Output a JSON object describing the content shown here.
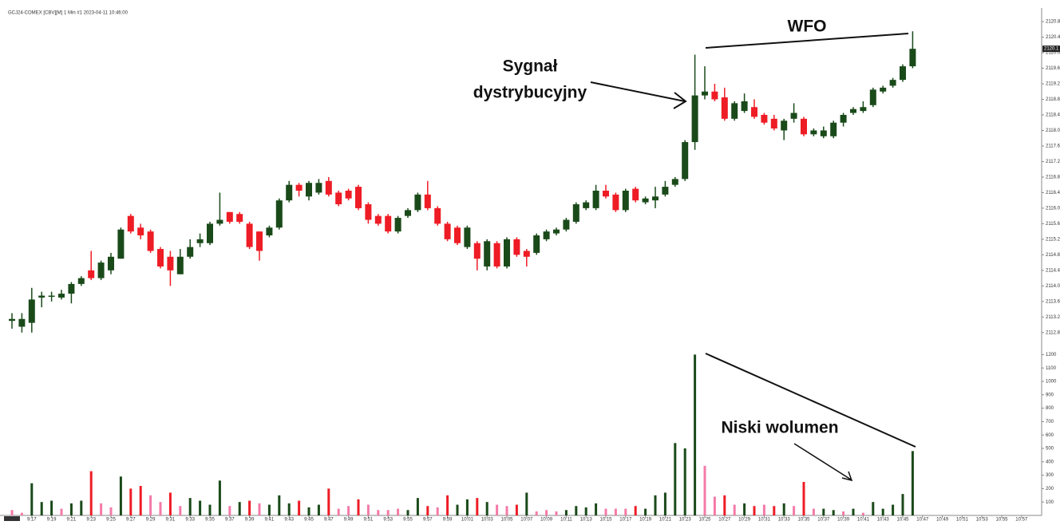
{
  "chart_data": {
    "type": "candlestick",
    "title": "GCJ24-COMEX [CBV][M]  1 Min  #1 2023-04-11 10:46:00",
    "annotations": [
      "WFO",
      "Sygnał",
      "dystrybucyjny",
      "Niski wolumen"
    ],
    "categories": [
      null,
      null,
      "9:17",
      null,
      "9:19",
      null,
      "9:21",
      null,
      "9:23",
      null,
      "9:25",
      null,
      "9:27",
      null,
      "9:29",
      null,
      "9:31",
      null,
      "9:33",
      null,
      "9:35",
      null,
      "9:37",
      null,
      "9:39",
      null,
      "9:41",
      null,
      "9:43",
      null,
      "9:45",
      null,
      "9:47",
      null,
      "9:49",
      null,
      "9:51",
      null,
      "9:53",
      null,
      "9:55",
      null,
      "9:57",
      null,
      "9:59",
      null,
      "10:01",
      null,
      "10:03",
      null,
      "10:05",
      null,
      "10:07",
      null,
      "10:09",
      null,
      "10:11",
      null,
      "10:13",
      null,
      "10:15",
      null,
      "10:17",
      null,
      "10:19",
      null,
      "10:21",
      null,
      "10:23",
      null,
      "10:25",
      null,
      "10:27",
      null,
      "10:29",
      null,
      "10:31",
      null,
      "10:33",
      null,
      "10:35",
      null,
      "10:37",
      null,
      "10:39",
      null,
      "10:41",
      null,
      "10:43",
      null,
      "10:45",
      null,
      "10:47",
      null,
      "10:49",
      null,
      "10:51",
      null,
      "10:53",
      null,
      "10:55",
      null,
      "10:57"
    ],
    "open": [
      2113.1,
      2112.95,
      2113.05,
      2113.7,
      2113.75,
      2113.7,
      2113.8,
      2114.05,
      2114.4,
      2114.2,
      2114.4,
      2114.7,
      2115.8,
      2115.5,
      2115.4,
      2114.95,
      2114.75,
      2114.3,
      2114.75,
      2115.1,
      2115.1,
      2115.6,
      2115.9,
      2115.85,
      2115.6,
      2115.4,
      2115.3,
      2115.5,
      2116.2,
      2116.6,
      2116.3,
      2116.4,
      2116.7,
      2116.4,
      2116.45,
      2116.55,
      2116.1,
      2115.8,
      2115.8,
      2115.4,
      2115.8,
      2115.95,
      2116.35,
      2116.0,
      2115.6,
      2115.5,
      2115.0,
      2115.1,
      2114.5,
      2115.1,
      2114.5,
      2115.2,
      2114.9,
      2114.85,
      2115.2,
      2115.35,
      2115.45,
      2115.65,
      2116.0,
      2116.0,
      2116.45,
      2116.35,
      2115.95,
      2116.5,
      2116.15,
      2116.2,
      2116.35,
      2116.6,
      2116.75,
      2117.7,
      2118.9,
      2119.0,
      2118.85,
      2118.3,
      2118.5,
      2118.6,
      2118.4,
      2118.3,
      2118.0,
      2118.3,
      2118.3,
      2117.9,
      2117.85,
      2117.85,
      2118.2,
      2118.45,
      2118.5,
      2118.65,
      2119.0,
      2119.15,
      2119.3,
      2119.65,
      null,
      null,
      null,
      null,
      null,
      null,
      null,
      null,
      null,
      null,
      null
    ],
    "high": [
      2113.3,
      2113.3,
      2113.95,
      2113.85,
      2113.85,
      2113.9,
      2114.1,
      2114.25,
      2114.9,
      2114.65,
      2114.85,
      2115.5,
      2115.85,
      2115.6,
      2115.45,
      2115.0,
      2114.9,
      2114.95,
      2115.2,
      2115.35,
      2115.65,
      2116.4,
      2115.9,
      2115.9,
      2115.65,
      2115.4,
      2115.55,
      2116.25,
      2116.7,
      2116.65,
      2116.7,
      2116.75,
      2116.8,
      2116.45,
      2116.5,
      2116.6,
      2116.15,
      2115.85,
      2115.85,
      2115.8,
      2116.0,
      2116.4,
      2116.7,
      2116.05,
      2115.65,
      2115.55,
      2115.55,
      2115.15,
      2115.2,
      2115.15,
      2115.25,
      2115.25,
      2114.95,
      2115.35,
      2115.45,
      2115.5,
      2115.75,
      2116.15,
      2116.2,
      2116.6,
      2116.6,
      2116.4,
      2116.5,
      2116.55,
      2116.3,
      2116.55,
      2116.7,
      2116.8,
      2117.75,
      2119.95,
      2119.65,
      2119.2,
      2119.1,
      2118.75,
      2118.95,
      2118.8,
      2118.45,
      2118.4,
      2118.3,
      2118.7,
      2118.35,
      2118.05,
      2118.1,
      2118.25,
      2118.45,
      2118.6,
      2118.75,
      2119.1,
      2119.15,
      2119.35,
      2119.7,
      2120.55,
      null,
      null,
      null,
      null,
      null,
      null,
      null,
      null,
      null,
      null,
      null
    ],
    "low": [
      2112.9,
      2112.8,
      2112.8,
      2113.45,
      2113.6,
      2113.65,
      2113.55,
      2114.0,
      2114.15,
      2114.15,
      2114.3,
      2114.7,
      2115.35,
      2115.2,
      2114.85,
      2114.45,
      2114.0,
      2114.3,
      2114.7,
      2115.0,
      2115.05,
      2115.55,
      2115.6,
      2115.6,
      2114.95,
      2114.65,
      2115.25,
      2115.45,
      2116.15,
      2116.3,
      2116.2,
      2116.35,
      2116.3,
      2116.05,
      2116.2,
      2115.95,
      2115.6,
      2115.55,
      2115.35,
      2115.35,
      2115.75,
      2115.9,
      2115.95,
      2115.55,
      2115.15,
      2115.05,
      2114.95,
      2114.4,
      2114.4,
      2114.45,
      2114.45,
      2114.75,
      2114.5,
      2114.8,
      2115.15,
      2115.3,
      2115.4,
      2115.6,
      2115.95,
      2115.95,
      2116.25,
      2115.9,
      2115.9,
      2116.15,
      2116.1,
      2116.0,
      2116.3,
      2116.55,
      2116.7,
      2117.5,
      2118.8,
      2118.75,
      2118.25,
      2118.25,
      2118.45,
      2118.3,
      2118.15,
      2118.0,
      2117.75,
      2118.2,
      2117.85,
      2117.85,
      2117.8,
      2117.8,
      2118.1,
      2118.4,
      2118.45,
      2118.6,
      2118.95,
      2119.1,
      2119.25,
      2119.6,
      null,
      null,
      null,
      null,
      null,
      null,
      null,
      null,
      null,
      null,
      null
    ],
    "close": [
      2113.15,
      2113.15,
      2113.65,
      2113.75,
      2113.75,
      2113.8,
      2114.05,
      2114.2,
      2114.2,
      2114.6,
      2114.75,
      2115.45,
      2115.4,
      2115.3,
      2114.9,
      2114.5,
      2114.4,
      2114.75,
      2115.0,
      2115.2,
      2115.6,
      2115.7,
      2115.65,
      2115.65,
      2115.0,
      2114.9,
      2115.5,
      2116.2,
      2116.6,
      2116.45,
      2116.65,
      2116.65,
      2116.35,
      2116.1,
      2116.25,
      2116.0,
      2115.7,
      2115.6,
      2115.4,
      2115.75,
      2115.95,
      2116.35,
      2116.0,
      2115.6,
      2115.2,
      2115.1,
      2115.5,
      2114.7,
      2115.15,
      2114.5,
      2115.2,
      2114.8,
      2114.75,
      2115.3,
      2115.4,
      2115.45,
      2115.7,
      2116.1,
      2116.15,
      2116.45,
      2116.3,
      2115.95,
      2116.45,
      2116.2,
      2116.25,
      2116.3,
      2116.55,
      2116.75,
      2117.7,
      2118.9,
      2119.0,
      2118.8,
      2118.3,
      2118.7,
      2118.75,
      2118.35,
      2118.2,
      2118.05,
      2118.25,
      2118.45,
      2117.9,
      2118.0,
      2118.0,
      2118.2,
      2118.4,
      2118.55,
      2118.6,
      2119.05,
      2119.1,
      2119.3,
      2119.65,
      2120.1,
      null,
      null,
      null,
      null,
      null,
      null,
      null,
      null,
      null,
      null,
      null
    ],
    "up_color": "#1a4a1a",
    "down_color": "#ee1c25",
    "volume": [
      40,
      20,
      240,
      100,
      110,
      50,
      90,
      110,
      330,
      90,
      60,
      290,
      200,
      220,
      150,
      100,
      170,
      70,
      130,
      110,
      80,
      260,
      70,
      100,
      110,
      90,
      80,
      150,
      90,
      110,
      60,
      80,
      200,
      50,
      70,
      120,
      80,
      40,
      40,
      50,
      40,
      130,
      70,
      60,
      150,
      80,
      120,
      130,
      100,
      80,
      70,
      80,
      170,
      30,
      40,
      30,
      40,
      70,
      60,
      90,
      50,
      50,
      50,
      70,
      50,
      150,
      170,
      540,
      500,
      1200,
      370,
      140,
      150,
      80,
      90,
      70,
      80,
      70,
      90,
      70,
      250,
      50,
      50,
      40,
      30,
      50,
      20,
      100,
      50,
      80,
      160,
      480,
      null,
      null,
      null,
      null,
      null,
      null,
      null,
      null,
      null,
      null,
      null
    ],
    "volume_colors": [
      "#f47aa8",
      "#f47aa8",
      "#1a4a1a",
      "#1a4a1a",
      "#1a4a1a",
      "#f47aa8",
      "#1a4a1a",
      "#1a4a1a",
      "#ee1c25",
      "#f47aa8",
      "#f47aa8",
      "#1a4a1a",
      "#ee1c25",
      "#ee1c25",
      "#f47aa8",
      "#f47aa8",
      "#ee1c25",
      "#f47aa8",
      "#1a4a1a",
      "#1a4a1a",
      "#1a4a1a",
      "#1a4a1a",
      "#f47aa8",
      "#1a4a1a",
      "#ee1c25",
      "#f47aa8",
      "#1a4a1a",
      "#1a4a1a",
      "#1a4a1a",
      "#ee1c25",
      "#1a4a1a",
      "#1a4a1a",
      "#ee1c25",
      "#f47aa8",
      "#f47aa8",
      "#ee1c25",
      "#f47aa8",
      "#f47aa8",
      "#f47aa8",
      "#f47aa8",
      "#1a4a1a",
      "#1a4a1a",
      "#ee1c25",
      "#f47aa8",
      "#ee1c25",
      "#1a4a1a",
      "#1a4a1a",
      "#ee1c25",
      "#1a4a1a",
      "#f47aa8",
      "#f47aa8",
      "#ee1c25",
      "#1a4a1a",
      "#f47aa8",
      "#f47aa8",
      "#f47aa8",
      "#1a4a1a",
      "#1a4a1a",
      "#1a4a1a",
      "#1a4a1a",
      "#f47aa8",
      "#f47aa8",
      "#f47aa8",
      "#ee1c25",
      "#1a4a1a",
      "#1a4a1a",
      "#1a4a1a",
      "#1a4a1a",
      "#1a4a1a",
      "#1a4a1a",
      "#f47aa8",
      "#f47aa8",
      "#ee1c25",
      "#f47aa8",
      "#1a4a1a",
      "#ee1c25",
      "#f47aa8",
      "#ee1c25",
      "#1a4a1a",
      "#f47aa8",
      "#ee1c25",
      "#f47aa8",
      "#1a4a1a",
      "#1a4a1a",
      "#f47aa8",
      "#1a4a1a",
      "#f47aa8",
      "#1a4a1a",
      "#1a4a1a",
      "#1a4a1a",
      "#1a4a1a",
      "#1a4a1a",
      null,
      null,
      null,
      null,
      null,
      null,
      null,
      null,
      null,
      null,
      null
    ],
    "last_price": 2120.1,
    "ylim": [
      2112.57,
      2121.15
    ],
    "yticks": [
      2112.8,
      2113.2,
      2113.6,
      {
        "value": 2114,
        "label": "2114.0"
      },
      2114.4,
      2114.8,
      2115.2,
      2115.6,
      {
        "value": 2116,
        "label": "2116.0"
      },
      2116.4,
      2116.8,
      2117.2,
      2117.6,
      {
        "value": 2118,
        "label": "2118.0"
      },
      2118.4,
      2118.8,
      2119.2,
      2119.6,
      {
        "value": 2120,
        "label": "2120.0"
      },
      2120.4,
      2120.8
    ],
    "y2lim": [
      0,
      1250
    ],
    "y2ticks": [
      100,
      200,
      300,
      400,
      500,
      600,
      700,
      800,
      900,
      1000,
      1100,
      1200
    ]
  }
}
